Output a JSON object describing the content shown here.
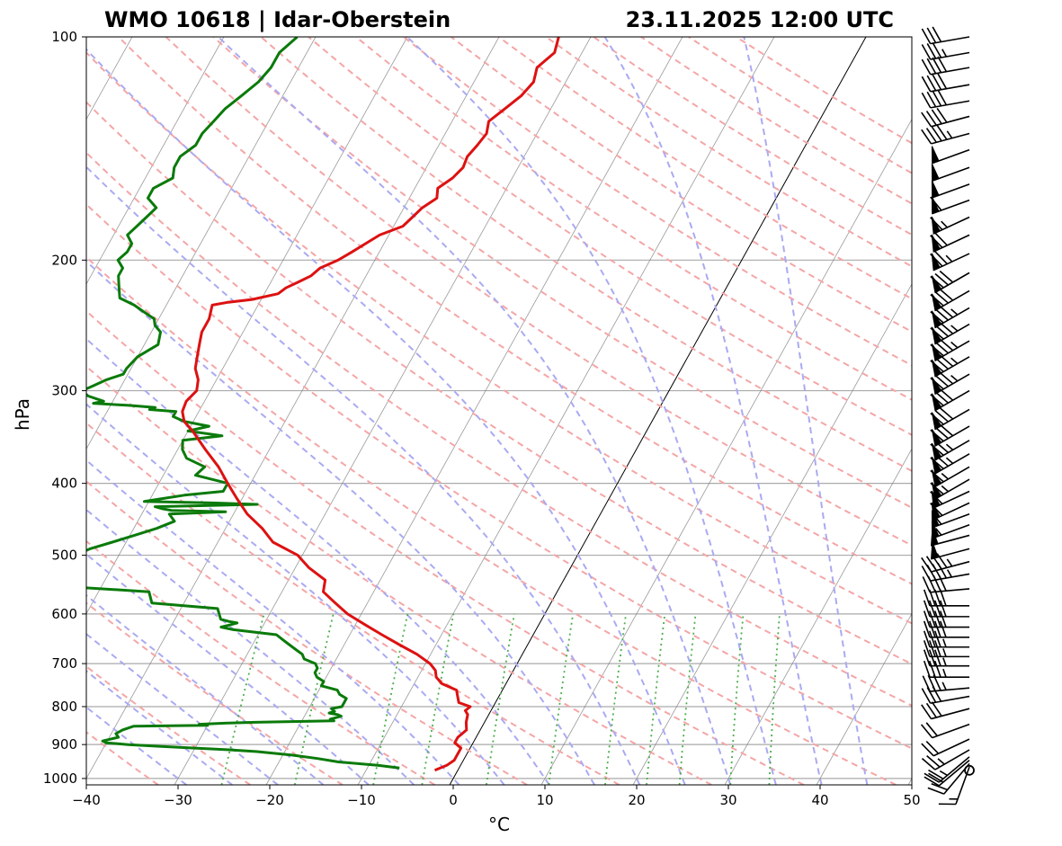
{
  "chart_data": {
    "type": "skew-t log-p sounding",
    "title_left": "WMO 10618 | Idar-Oberstein",
    "title_right": "23.11.2025 12:00 UTC",
    "xlabel": "°C",
    "ylabel": "hPa",
    "xlim": [
      -40,
      50
    ],
    "ylim": [
      1020,
      100
    ],
    "x_ticks": [
      -40,
      -30,
      -20,
      -10,
      0,
      10,
      20,
      30,
      40,
      50
    ],
    "x_tick_labels": [
      "−40",
      "−30",
      "−20",
      "−10",
      "0",
      "10",
      "20",
      "30",
      "40",
      "50"
    ],
    "y_ticks": [
      1000,
      900,
      800,
      700,
      600,
      500,
      400,
      300,
      200,
      100
    ],
    "y_tick_labels": [
      "1000",
      "900",
      "800",
      "700",
      "600",
      "500",
      "400",
      "300",
      "200",
      "100"
    ],
    "skew_slope_degC_per_decade": 45,
    "colors": {
      "temperature": "#dd1111",
      "dewpoint": "#0a7a0a",
      "dry_adiabat": "#f4a6a6",
      "moist_adiabat": "#aaaaf2",
      "mixing_ratio": "#4cae4c",
      "isotherm": "#777777",
      "isobar": "#aaaaaa",
      "zero_isotherm": "#000000"
    },
    "isotherm_values_degC": [
      -140,
      -130,
      -120,
      -110,
      -100,
      -90,
      -80,
      -70,
      -60,
      -50,
      -40,
      -30,
      -20,
      -10,
      0,
      10,
      20,
      30,
      40,
      50
    ],
    "highlighted_isotherm_degC": 0,
    "dry_adiabat_theta_K": [
      230,
      240,
      250,
      260,
      270,
      280,
      290,
      300,
      310,
      320,
      330,
      340,
      350,
      360,
      370,
      380,
      390,
      400,
      410,
      420,
      430,
      440,
      450,
      460,
      470,
      480,
      490,
      500
    ],
    "moist_adiabat_start_degC_at_1000": [
      -30,
      -25,
      -20,
      -15,
      -10,
      -5,
      0,
      5,
      10,
      15,
      20,
      25,
      30,
      35,
      40,
      45
    ],
    "mixing_ratio_gkg": [
      0.5,
      1,
      2,
      3,
      5,
      8,
      12,
      16,
      20,
      28,
      36
    ],
    "temperature": {
      "name": "Temperature",
      "pressure_hPa": [
        975,
        960,
        945,
        930,
        910,
        895,
        880,
        860,
        840,
        820,
        810,
        800,
        790,
        775,
        760,
        745,
        730,
        715,
        700,
        680,
        660,
        640,
        620,
        600,
        580,
        560,
        540,
        520,
        500,
        480,
        460,
        440,
        420,
        400,
        380,
        360,
        340,
        330,
        320,
        310,
        300,
        290,
        280,
        270,
        260,
        250,
        240,
        230,
        228,
        226,
        222,
        218,
        214,
        210,
        205,
        200,
        195,
        190,
        185,
        180,
        175,
        170,
        165,
        160,
        155,
        150,
        145,
        140,
        135,
        130,
        125,
        120,
        115,
        110,
        105,
        100
      ],
      "temp_degC": [
        -2.5,
        -1.5,
        -1.0,
        -1.0,
        -1.0,
        -2.0,
        -2.0,
        -1.5,
        -2.0,
        -2.3,
        -2.8,
        -2.5,
        -4.0,
        -4.5,
        -5.0,
        -7.0,
        -8.0,
        -8.5,
        -9.5,
        -11.5,
        -14.0,
        -16.5,
        -19.0,
        -21.5,
        -23.5,
        -25.5,
        -26.0,
        -28.5,
        -30.5,
        -34.0,
        -36.0,
        -38.5,
        -40.5,
        -42.5,
        -44.5,
        -47.0,
        -49.5,
        -51.0,
        -51.8,
        -52.0,
        -51.5,
        -52.0,
        -53.0,
        -53.5,
        -54.0,
        -54.5,
        -54.5,
        -55.0,
        -53.5,
        -51.0,
        -48.5,
        -48.0,
        -47.0,
        -46.0,
        -45.5,
        -44.0,
        -43.0,
        -42.0,
        -41.0,
        -39.0,
        -38.5,
        -38.0,
        -37.0,
        -37.5,
        -36.5,
        -36.0,
        -36.2,
        -35.8,
        -35.5,
        -36.0,
        -35.0,
        -34.0,
        -33.5,
        -34.0,
        -33.0,
        -33.5
      ]
    },
    "dewpoint": {
      "name": "Dewpoint",
      "pressure_hPa": [
        968,
        960,
        950,
        940,
        930,
        920,
        915,
        910,
        905,
        900,
        898,
        895,
        890,
        880,
        870,
        860,
        850,
        848,
        845,
        842,
        840,
        836,
        832,
        828,
        824,
        820,
        816,
        812,
        805,
        800,
        790,
        780,
        770,
        760,
        750,
        740,
        730,
        720,
        710,
        700,
        690,
        680,
        670,
        660,
        650,
        640,
        630,
        625,
        620,
        617,
        614,
        610,
        600,
        590,
        580,
        570,
        560,
        550,
        545,
        540,
        530,
        520,
        510,
        500,
        498,
        490,
        480,
        470,
        460,
        450,
        445,
        440,
        437,
        435,
        433,
        430,
        427,
        425,
        423,
        420,
        415,
        410,
        400,
        390,
        380,
        370,
        360,
        350,
        345,
        340,
        335,
        330,
        325,
        320,
        318,
        316,
        314,
        312,
        310,
        305,
        300,
        295,
        290,
        285,
        280,
        270,
        260,
        250,
        245,
        240,
        235,
        230,
        225,
        220,
        215,
        210,
        205,
        200,
        195,
        190,
        185,
        180,
        175,
        170,
        165,
        160,
        155,
        150,
        145,
        140,
        135,
        130,
        125,
        120,
        115,
        110,
        105,
        100
      ],
      "dwpt_degC": [
        -6.5,
        -9.0,
        -13.5,
        -16.0,
        -19.0,
        -23.0,
        -26.0,
        -30.0,
        -34.0,
        -37.5,
        -38.5,
        -40.0,
        -40.5,
        -39.0,
        -39.5,
        -39.0,
        -38.0,
        -30.0,
        -31.0,
        -28.0,
        -25.0,
        -16.5,
        -17.0,
        -16.5,
        -16.0,
        -16.5,
        -17.5,
        -17.0,
        -17.5,
        -16.5,
        -16.5,
        -16.5,
        -17.5,
        -18.0,
        -20.0,
        -20.0,
        -21.0,
        -21.5,
        -21.5,
        -22.0,
        -23.5,
        -24.0,
        -25.0,
        -26.0,
        -27.0,
        -28.0,
        -33.0,
        -34.5,
        -33.5,
        -33.0,
        -34.0,
        -35.0,
        -35.5,
        -36.0,
        -43.5,
        -44.0,
        -44.5,
        -55.0,
        -55.0,
        -55.5,
        -55.5,
        -55.5,
        -54.5,
        -55.0,
        -54.5,
        -53.5,
        -51.5,
        -49.5,
        -47.5,
        -46.0,
        -46.5,
        -47.0,
        -41.0,
        -47.0,
        -48.0,
        -49.0,
        -38.0,
        -43.0,
        -50.5,
        -49.0,
        -46.5,
        -42.5,
        -42.5,
        -46.5,
        -46.0,
        -48.5,
        -49.5,
        -50.0,
        -46.0,
        -50.0,
        -48.0,
        -51.0,
        -52.5,
        -52.5,
        -55.5,
        -55.0,
        -58.0,
        -62.0,
        -61.0,
        -63.0,
        -64.0,
        -63.0,
        -62.0,
        -60.5,
        -60.5,
        -60.0,
        -58.5,
        -59.0,
        -60.0,
        -60.5,
        -62.0,
        -63.5,
        -65.5,
        -66.0,
        -66.5,
        -67.0,
        -67.0,
        -68.0,
        -67.5,
        -67.5,
        -68.5,
        -68.0,
        -67.5,
        -67.0,
        -68.5,
        -68.5,
        -67.0,
        -67.5,
        -67.5,
        -66.5,
        -66.5,
        -66.0,
        -65.5,
        -64.5,
        -63.5,
        -63.0,
        -63.0,
        -62.0
      ]
    },
    "wind_barbs": {
      "pressure_hPa": [
        975,
        965,
        955,
        945,
        935,
        915,
        885,
        845,
        805,
        775,
        755,
        730,
        705,
        685,
        665,
        645,
        625,
        605,
        585,
        555,
        530,
        510,
        490,
        470,
        455,
        440,
        425,
        410,
        395,
        380,
        365,
        350,
        335,
        318,
        300,
        285,
        270,
        257,
        244,
        232,
        220,
        208,
        196,
        185,
        175,
        166,
        158,
        150,
        142,
        135,
        128,
        122,
        116,
        110,
        105,
        100
      ],
      "speed_kt": [
        0,
        15,
        20,
        20,
        25,
        25,
        20,
        20,
        30,
        30,
        35,
        35,
        35,
        35,
        35,
        40,
        40,
        40,
        40,
        40,
        45,
        45,
        50,
        50,
        55,
        55,
        60,
        60,
        65,
        65,
        75,
        75,
        80,
        80,
        80,
        85,
        85,
        85,
        85,
        85,
        80,
        80,
        75,
        70,
        65,
        60,
        50,
        50,
        50,
        45,
        40,
        40,
        40,
        40,
        35,
        30
      ],
      "direction_deg": [
        0,
        200,
        220,
        230,
        230,
        240,
        245,
        250,
        255,
        260,
        265,
        270,
        270,
        270,
        270,
        270,
        270,
        270,
        270,
        265,
        260,
        255,
        255,
        255,
        250,
        250,
        245,
        245,
        240,
        240,
        240,
        240,
        240,
        240,
        240,
        240,
        240,
        240,
        240,
        240,
        240,
        240,
        245,
        245,
        245,
        250,
        250,
        250,
        250,
        255,
        255,
        260,
        260,
        260,
        260,
        260
      ]
    }
  }
}
